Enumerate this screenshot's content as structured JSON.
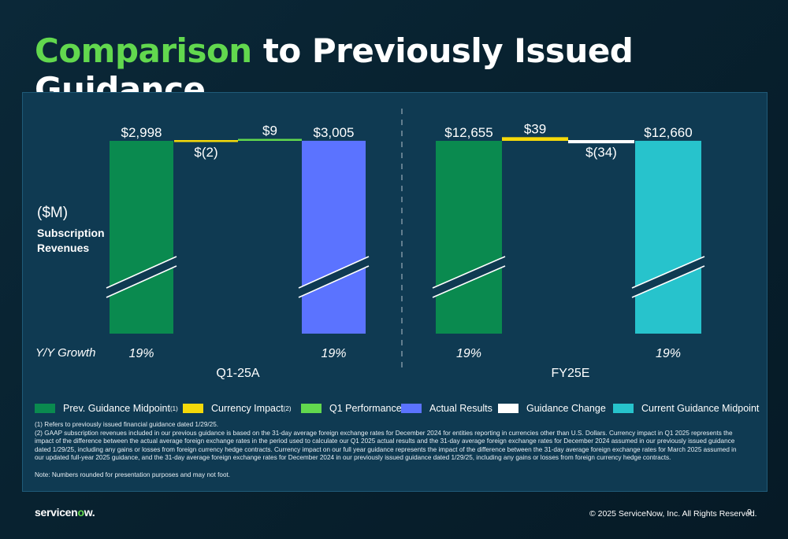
{
  "title": {
    "accent": "Comparison",
    "rest": " to Previously Issued Guidance"
  },
  "y_unit": "($M)",
  "metric": "Subscription Revenues",
  "yoy_label": "Y/Y Growth",
  "colors": {
    "prev_guidance": "#0a8a4f",
    "currency_impact": "#f5d90a",
    "q1_performance": "#62d84e",
    "actual_results": "#5b73ff",
    "guidance_change": "#ffffff",
    "current_guidance": "#27c3cc"
  },
  "chart_data": [
    {
      "type": "bar",
      "subtype": "waterfall",
      "group_label": "Q1-25A",
      "bars": [
        {
          "name": "Prev. Guidance Midpoint",
          "value": 2998,
          "label": "$2,998",
          "kind": "total",
          "color_key": "prev_guidance"
        },
        {
          "name": "Currency Impact",
          "value": -2,
          "label": "$(2)",
          "kind": "delta",
          "color_key": "currency_impact"
        },
        {
          "name": "Q1 Performance",
          "value": 9,
          "label": "$9",
          "kind": "delta",
          "color_key": "q1_performance"
        },
        {
          "name": "Actual Results",
          "value": 3005,
          "label": "$3,005",
          "kind": "total",
          "color_key": "actual_results"
        }
      ],
      "yoy_growth": [
        {
          "bar": "Prev. Guidance Midpoint",
          "label": "19%"
        },
        {
          "bar": "Actual Results",
          "label": "19%"
        }
      ],
      "axis_break": true
    },
    {
      "type": "bar",
      "subtype": "waterfall",
      "group_label": "FY25E",
      "bars": [
        {
          "name": "Prev. Guidance Midpoint",
          "value": 12655,
          "label": "$12,655",
          "kind": "total",
          "color_key": "prev_guidance"
        },
        {
          "name": "Currency Impact",
          "value": 39,
          "label": "$39",
          "kind": "delta",
          "color_key": "currency_impact"
        },
        {
          "name": "Guidance Change",
          "value": -34,
          "label": "$(34)",
          "kind": "delta",
          "color_key": "guidance_change"
        },
        {
          "name": "Current Guidance Midpoint",
          "value": 12660,
          "label": "$12,660",
          "kind": "total",
          "color_key": "current_guidance"
        }
      ],
      "yoy_growth": [
        {
          "bar": "Prev. Guidance Midpoint",
          "label": "19%"
        },
        {
          "bar": "Current Guidance Midpoint",
          "label": "19%"
        }
      ],
      "axis_break": true
    }
  ],
  "legend": [
    {
      "label": "Prev. Guidance Midpoint",
      "sup": "(1)",
      "color_key": "prev_guidance"
    },
    {
      "label": "Currency Impact",
      "sup": "(2)",
      "color_key": "currency_impact"
    },
    {
      "label": "Q1 Performance",
      "sup": "",
      "color_key": "q1_performance"
    },
    {
      "label": "Actual Results",
      "sup": "",
      "color_key": "actual_results"
    },
    {
      "label": "Guidance Change",
      "sup": "",
      "color_key": "guidance_change"
    },
    {
      "label": "Current Guidance Midpoint",
      "sup": "",
      "color_key": "current_guidance"
    }
  ],
  "footnotes": [
    "(1) Refers to previously issued financial guidance dated 1/29/25.",
    "(2) GAAP subscription revenues included in our previous guidance is based on the 31-day average foreign exchange rates for December 2024 for entities reporting in currencies other than U.S. Dollars. Currency impact in Q1 2025 represents the impact of the difference between the actual average foreign exchange rates in the period used to calculate our Q1 2025 actual results and the 31-day average foreign exchange rates for December 2024 assumed in our previously issued guidance dated 1/29/25, including any gains or losses from foreign currency hedge contracts. Currency impact on our full year guidance represents the impact of the difference between the 31-day average foreign exchange rates for March 2025 assumed in our updated full-year 2025 guidance, and the 31-day average foreign exchange rates for December 2024 in our previously issued guidance dated 1/29/25, including any gains or losses from foreign currency hedge contracts."
  ],
  "note": "Note: Numbers rounded for presentation purposes and may not foot.",
  "logo": "servicenow.",
  "copyright": "© 2025 ServiceNow, Inc. All Rights Reserved.",
  "page_number": "9"
}
